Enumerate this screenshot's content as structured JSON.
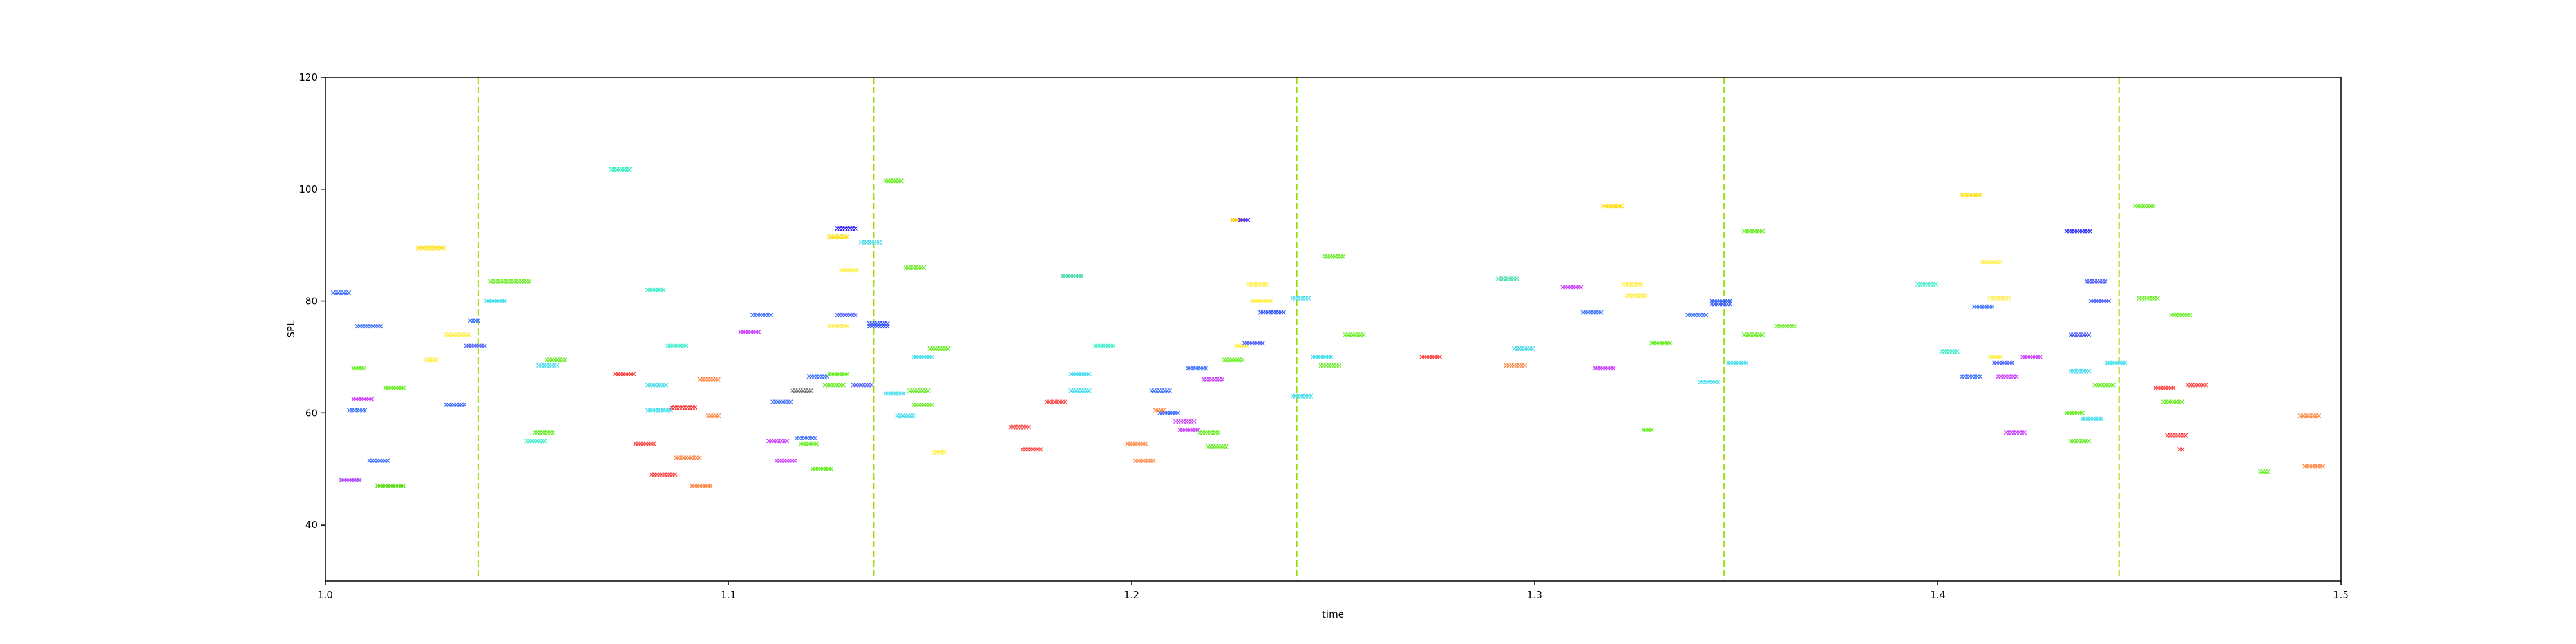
{
  "chart_data": {
    "type": "scatter",
    "title": "",
    "xlabel": "time",
    "ylabel": "SPL",
    "xlim": [
      1.0,
      1.5
    ],
    "ylim": [
      30,
      120
    ],
    "xticks": [
      1.0,
      1.1,
      1.2,
      1.3,
      1.4,
      1.5
    ],
    "xtick_labels": [
      "1.0",
      "1.1",
      "1.2",
      "1.3",
      "1.4",
      "1.5"
    ],
    "yticks": [
      40,
      60,
      80,
      100,
      120
    ],
    "ytick_labels": [
      "40",
      "60",
      "80",
      "100",
      "120"
    ],
    "grid": false,
    "marker": "x",
    "vertical_lines": {
      "x": [
        1.038,
        1.136,
        1.241,
        1.347,
        1.445
      ],
      "color": "#99dd00",
      "style": "dashed"
    },
    "notes": [
      [
        1.002,
        1.006,
        81.5,
        "#3b6fff"
      ],
      [
        1.004,
        1.009,
        48,
        "#b04bff"
      ],
      [
        1.006,
        1.01,
        60.5,
        "#4477ff"
      ],
      [
        1.007,
        1.012,
        62.5,
        "#cc44ff"
      ],
      [
        1.007,
        1.01,
        68,
        "#66ee22"
      ],
      [
        1.008,
        1.014,
        75.5,
        "#3b6fff"
      ],
      [
        1.011,
        1.016,
        51.5,
        "#3b6fff"
      ],
      [
        1.013,
        1.02,
        47,
        "#55dd11"
      ],
      [
        1.015,
        1.02,
        64.5,
        "#66ee22"
      ],
      [
        1.023,
        1.03,
        89.5,
        "#ffdd00"
      ],
      [
        1.025,
        1.028,
        69.5,
        "#ffee44"
      ],
      [
        1.03,
        1.036,
        74,
        "#ffee44"
      ],
      [
        1.03,
        1.035,
        61.5,
        "#3b6fff"
      ],
      [
        1.036,
        1.038,
        76.5,
        "#3b6fff"
      ],
      [
        1.035,
        1.04,
        72,
        "#5566ff"
      ],
      [
        1.04,
        1.045,
        80,
        "#44ddee"
      ],
      [
        1.041,
        1.051,
        83.5,
        "#66ee22"
      ],
      [
        1.05,
        1.055,
        55,
        "#44eecc"
      ],
      [
        1.052,
        1.057,
        56.5,
        "#66ee22"
      ],
      [
        1.053,
        1.058,
        68.5,
        "#44ddee"
      ],
      [
        1.055,
        1.06,
        69.5,
        "#66ee22"
      ],
      [
        1.071,
        1.076,
        103.5,
        "#22eebb"
      ],
      [
        1.072,
        1.077,
        67,
        "#ff4444"
      ],
      [
        1.077,
        1.082,
        54.5,
        "#ff4444"
      ],
      [
        1.08,
        1.084,
        82,
        "#44eecc"
      ],
      [
        1.08,
        1.085,
        65,
        "#44ddee"
      ],
      [
        1.08,
        1.086,
        60.5,
        "#44ddee"
      ],
      [
        1.081,
        1.087,
        49,
        "#ff4444"
      ],
      [
        1.085,
        1.09,
        72,
        "#44eecc"
      ],
      [
        1.086,
        1.092,
        61,
        "#ff3333"
      ],
      [
        1.087,
        1.093,
        52,
        "#ff8844"
      ],
      [
        1.091,
        1.096,
        47,
        "#ff8844"
      ],
      [
        1.093,
        1.098,
        66,
        "#ff8844"
      ],
      [
        1.095,
        1.098,
        59.5,
        "#ff8844"
      ],
      [
        1.103,
        1.108,
        74.5,
        "#cc44ff"
      ],
      [
        1.106,
        1.111,
        77.5,
        "#4477ff"
      ],
      [
        1.11,
        1.115,
        55,
        "#cc44ff"
      ],
      [
        1.111,
        1.116,
        62,
        "#4477ff"
      ],
      [
        1.112,
        1.117,
        51.5,
        "#cc44ff"
      ],
      [
        1.116,
        1.121,
        64,
        "#777777"
      ],
      [
        1.117,
        1.122,
        55.5,
        "#4477ff"
      ],
      [
        1.118,
        1.122,
        54.5,
        "#66ee22"
      ],
      [
        1.12,
        1.125,
        66.5,
        "#4477ff"
      ],
      [
        1.121,
        1.126,
        50,
        "#66ee22"
      ],
      [
        1.125,
        1.13,
        67,
        "#66ee22"
      ],
      [
        1.125,
        1.13,
        91.5,
        "#ffdd00"
      ],
      [
        1.125,
        1.13,
        75.5,
        "#ffee44"
      ],
      [
        1.124,
        1.129,
        65,
        "#66ee22"
      ],
      [
        1.127,
        1.132,
        93,
        "#3322ff"
      ],
      [
        1.127,
        1.132,
        77.5,
        "#5566ff"
      ],
      [
        1.128,
        1.132,
        85.5,
        "#ffee44"
      ],
      [
        1.131,
        1.136,
        65,
        "#5566ff"
      ],
      [
        1.133,
        1.138,
        90.5,
        "#44ddee"
      ],
      [
        1.135,
        1.14,
        76,
        "#3355ff"
      ],
      [
        1.135,
        1.14,
        75.5,
        "#3355ff"
      ],
      [
        1.139,
        1.143,
        101.5,
        "#66ee22"
      ],
      [
        1.139,
        1.144,
        63.5,
        "#44ddee"
      ],
      [
        1.142,
        1.146,
        59.5,
        "#44ddee"
      ],
      [
        1.144,
        1.149,
        86,
        "#66ee22"
      ],
      [
        1.145,
        1.15,
        64,
        "#66ee22"
      ],
      [
        1.146,
        1.151,
        61.5,
        "#66ee22"
      ],
      [
        1.146,
        1.151,
        70,
        "#44ddee"
      ],
      [
        1.15,
        1.155,
        71.5,
        "#66ee22"
      ],
      [
        1.151,
        1.154,
        53,
        "#ffee44"
      ],
      [
        1.17,
        1.175,
        57.5,
        "#ff4444"
      ],
      [
        1.173,
        1.178,
        53.5,
        "#ff4444"
      ],
      [
        1.179,
        1.184,
        62,
        "#ff4444"
      ],
      [
        1.183,
        1.188,
        84.5,
        "#44ddaa"
      ],
      [
        1.185,
        1.19,
        67,
        "#44ddee"
      ],
      [
        1.185,
        1.19,
        64,
        "#44ddee"
      ],
      [
        1.191,
        1.196,
        72,
        "#44eecc"
      ],
      [
        1.199,
        1.204,
        54.5,
        "#ff8844"
      ],
      [
        1.201,
        1.206,
        51.5,
        "#ff8844"
      ],
      [
        1.205,
        1.21,
        64,
        "#4477ff"
      ],
      [
        1.207,
        1.212,
        60,
        "#3b6fff"
      ],
      [
        1.206,
        1.208,
        60.5,
        "#ff8844"
      ],
      [
        1.211,
        1.216,
        58.5,
        "#cc44ff"
      ],
      [
        1.212,
        1.217,
        57,
        "#cc44ff"
      ],
      [
        1.214,
        1.219,
        68,
        "#4477ff"
      ],
      [
        1.217,
        1.222,
        56.5,
        "#66ee22"
      ],
      [
        1.218,
        1.223,
        66,
        "#cc44ff"
      ],
      [
        1.219,
        1.224,
        54,
        "#66ee22"
      ],
      [
        1.223,
        1.228,
        69.5,
        "#66ee22"
      ],
      [
        1.225,
        1.228,
        94.5,
        "#ffcc00"
      ],
      [
        1.227,
        1.229,
        94.5,
        "#5533ff"
      ],
      [
        1.226,
        1.229,
        72,
        "#ffee44"
      ],
      [
        1.228,
        1.233,
        72.5,
        "#5566ff"
      ],
      [
        1.229,
        1.234,
        83,
        "#ffee44"
      ],
      [
        1.23,
        1.235,
        80,
        "#ffee44"
      ],
      [
        1.232,
        1.238,
        78,
        "#3355ff"
      ],
      [
        1.24,
        1.244,
        80.5,
        "#44ddee"
      ],
      [
        1.24,
        1.245,
        63,
        "#44ddee"
      ],
      [
        1.245,
        1.25,
        70,
        "#44ddee"
      ],
      [
        1.247,
        1.252,
        68.5,
        "#66ee22"
      ],
      [
        1.248,
        1.253,
        88,
        "#66ee22"
      ],
      [
        1.253,
        1.258,
        74,
        "#66ee22"
      ],
      [
        1.272,
        1.277,
        70,
        "#ff4444"
      ],
      [
        1.291,
        1.296,
        84,
        "#44ddaa"
      ],
      [
        1.293,
        1.298,
        68.5,
        "#ff8844"
      ],
      [
        1.295,
        1.3,
        71.5,
        "#44ddee"
      ],
      [
        1.307,
        1.312,
        82.5,
        "#cc44ff"
      ],
      [
        1.312,
        1.317,
        78,
        "#4477ff"
      ],
      [
        1.315,
        1.32,
        68,
        "#cc44ff"
      ],
      [
        1.317,
        1.322,
        97,
        "#ffdd00"
      ],
      [
        1.322,
        1.327,
        83,
        "#ffee44"
      ],
      [
        1.323,
        1.328,
        81,
        "#ffee44"
      ],
      [
        1.327,
        1.329,
        57,
        "#66ee22"
      ],
      [
        1.329,
        1.334,
        72.5,
        "#66ee22"
      ],
      [
        1.338,
        1.343,
        77.5,
        "#4477ff"
      ],
      [
        1.341,
        1.346,
        65.5,
        "#44ddee"
      ],
      [
        1.344,
        1.349,
        80,
        "#3b6fff"
      ],
      [
        1.344,
        1.349,
        79.5,
        "#3355ff"
      ],
      [
        1.348,
        1.353,
        69,
        "#44ddee"
      ],
      [
        1.352,
        1.357,
        92.5,
        "#66ee22"
      ],
      [
        1.352,
        1.357,
        74,
        "#66ee22"
      ],
      [
        1.36,
        1.365,
        75.5,
        "#66ee22"
      ],
      [
        1.395,
        1.4,
        83,
        "#44eecc"
      ],
      [
        1.401,
        1.405,
        71,
        "#44eecc"
      ],
      [
        1.406,
        1.411,
        99,
        "#ffdd00"
      ],
      [
        1.406,
        1.411,
        66.5,
        "#4477ff"
      ],
      [
        1.409,
        1.414,
        79,
        "#4477ff"
      ],
      [
        1.411,
        1.416,
        87,
        "#ffee44"
      ],
      [
        1.413,
        1.418,
        80.5,
        "#ffee44"
      ],
      [
        1.413,
        1.416,
        70,
        "#ffee44"
      ],
      [
        1.414,
        1.419,
        69,
        "#5566ff"
      ],
      [
        1.415,
        1.42,
        66.5,
        "#cc44ff"
      ],
      [
        1.417,
        1.422,
        56.5,
        "#cc44ff"
      ],
      [
        1.421,
        1.426,
        70,
        "#cc44ff"
      ],
      [
        1.432,
        1.438,
        92.5,
        "#3333ff"
      ],
      [
        1.433,
        1.438,
        74,
        "#4455ff"
      ],
      [
        1.432,
        1.436,
        60,
        "#66ee22"
      ],
      [
        1.433,
        1.438,
        55,
        "#66ee22"
      ],
      [
        1.433,
        1.438,
        67.5,
        "#44ddee"
      ],
      [
        1.436,
        1.441,
        59,
        "#44ddee"
      ],
      [
        1.437,
        1.442,
        83.5,
        "#4455ff"
      ],
      [
        1.438,
        1.443,
        80,
        "#5566ff"
      ],
      [
        1.439,
        1.444,
        65,
        "#66ee22"
      ],
      [
        1.442,
        1.447,
        69,
        "#44ddee"
      ],
      [
        1.449,
        1.454,
        97,
        "#66ee22"
      ],
      [
        1.45,
        1.455,
        80.5,
        "#66ee22"
      ],
      [
        1.454,
        1.459,
        64.5,
        "#ff4444"
      ],
      [
        1.456,
        1.461,
        62,
        "#66ee22"
      ],
      [
        1.458,
        1.463,
        77.5,
        "#66ee22"
      ],
      [
        1.457,
        1.462,
        56,
        "#ff4444"
      ],
      [
        1.46,
        1.461,
        53.5,
        "#ff4444"
      ],
      [
        1.462,
        1.467,
        65,
        "#ff4444"
      ],
      [
        1.48,
        1.482,
        49.5,
        "#66ee22"
      ],
      [
        1.49,
        1.495,
        59.5,
        "#ff8844"
      ],
      [
        1.491,
        1.496,
        50.5,
        "#ff8844"
      ]
    ]
  }
}
